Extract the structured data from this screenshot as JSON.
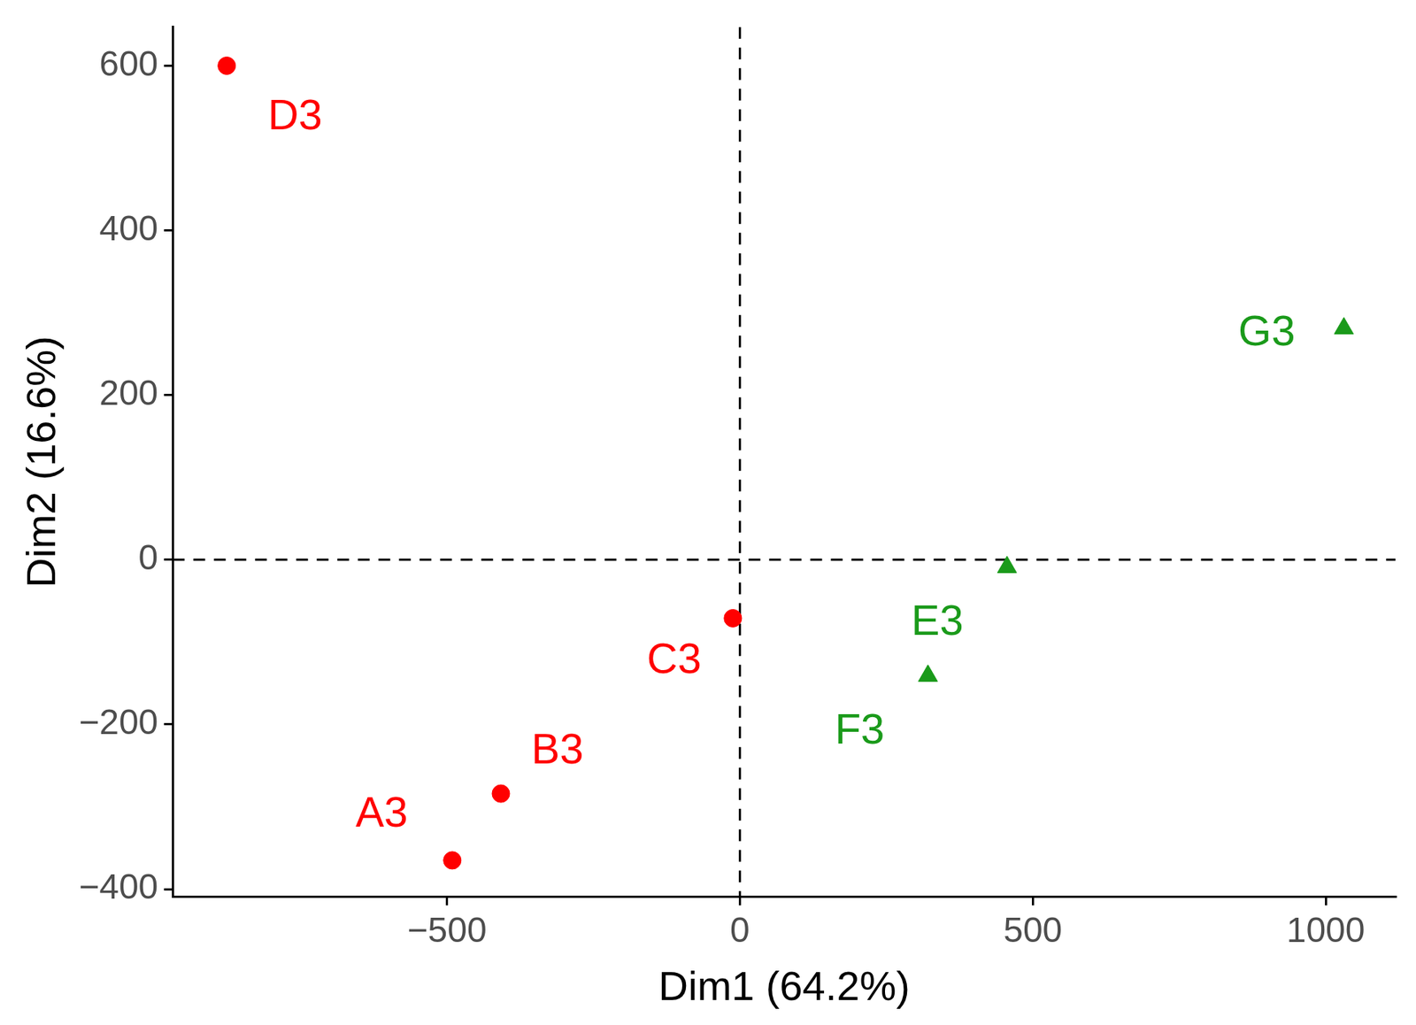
{
  "chart_data": {
    "type": "scatter",
    "x_label": "Dim1 (64.2%)",
    "y_label": "Dim2 (16.6%)",
    "series": [
      {
        "color": "#ff0000",
        "marker": "circle",
        "labels": [
          "A3",
          "B3",
          "C3",
          "D3"
        ],
        "x": [
          -491,
          -408,
          -12,
          -876
        ],
        "y": [
          -365,
          -284,
          -71,
          600
        ]
      },
      {
        "color": "#1a9a1a",
        "marker": "triangle",
        "labels": [
          "E3",
          "F3",
          "G3"
        ],
        "x": [
          456,
          321,
          1031
        ],
        "y": [
          -9,
          -141,
          281
        ]
      }
    ],
    "reference_lines": {
      "x": 0,
      "y": 0
    },
    "xlim": [
      -968,
      1119
    ],
    "xticks": [
      {
        "value": -500,
        "label": "−500"
      },
      0,
      500,
      1000
    ],
    "ylim": [
      -409,
      647
    ],
    "yticks": [
      {
        "value": -400,
        "label": "−400"
      },
      {
        "value": -200,
        "label": "−200"
      },
      0,
      200,
      400,
      600
    ],
    "grid": false
  }
}
